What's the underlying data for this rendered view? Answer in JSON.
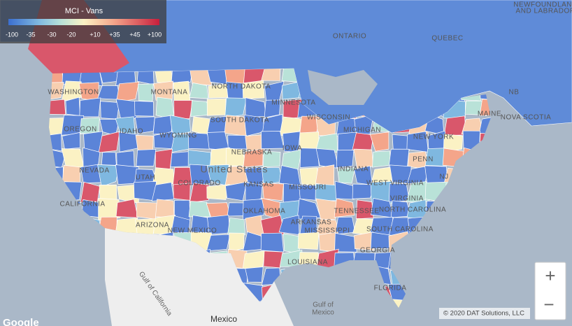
{
  "legend": {
    "title": "MCI - Vans",
    "labels": [
      "-100",
      "-35",
      "-30",
      "-20",
      "+10",
      "+35",
      "+45",
      "+100"
    ]
  },
  "map_labels": [
    "WASHINGTON",
    "OREGON",
    "CALIFORNIA",
    "NEVADA",
    "IDAHO",
    "MONTANA",
    "WYOMING",
    "UTAH",
    "COLORADO",
    "ARIZONA",
    "NEW MEXICO",
    "NORTH DAKOTA",
    "SOUTH DAKOTA",
    "NEBRASKA",
    "KANSAS",
    "OKLAHOMA",
    "MINNESOTA",
    "IOWA",
    "MISSOURI",
    "ARKANSAS",
    "LOUISIANA",
    "WISCONSIN",
    "MICHIGAN",
    "INDIANA",
    "TENNESSEE",
    "MISSISSIPPI",
    "GEORGIA",
    "FLORIDA",
    "SOUTH CAROLINA",
    "NORTH CAROLINA",
    "VIRGINIA",
    "WEST VIRGINIA",
    "PENN",
    "NEW YORK",
    "MAINE",
    "NOVA SCOTIA",
    "NJ",
    "NB",
    "ONTARIO",
    "QUEBEC",
    "NEWFOUNDLAND",
    "AND LABRADOR"
  ],
  "country_label": "United States",
  "mexico_label": "Mexico",
  "gulf_mexico": [
    "Gulf of",
    "Mexico"
  ],
  "gulf_california": "Gulf of California",
  "zoom_in": "+",
  "zoom_out": "−",
  "copyright": "© 2020 DAT Solutions, LLC",
  "google": "Google"
}
